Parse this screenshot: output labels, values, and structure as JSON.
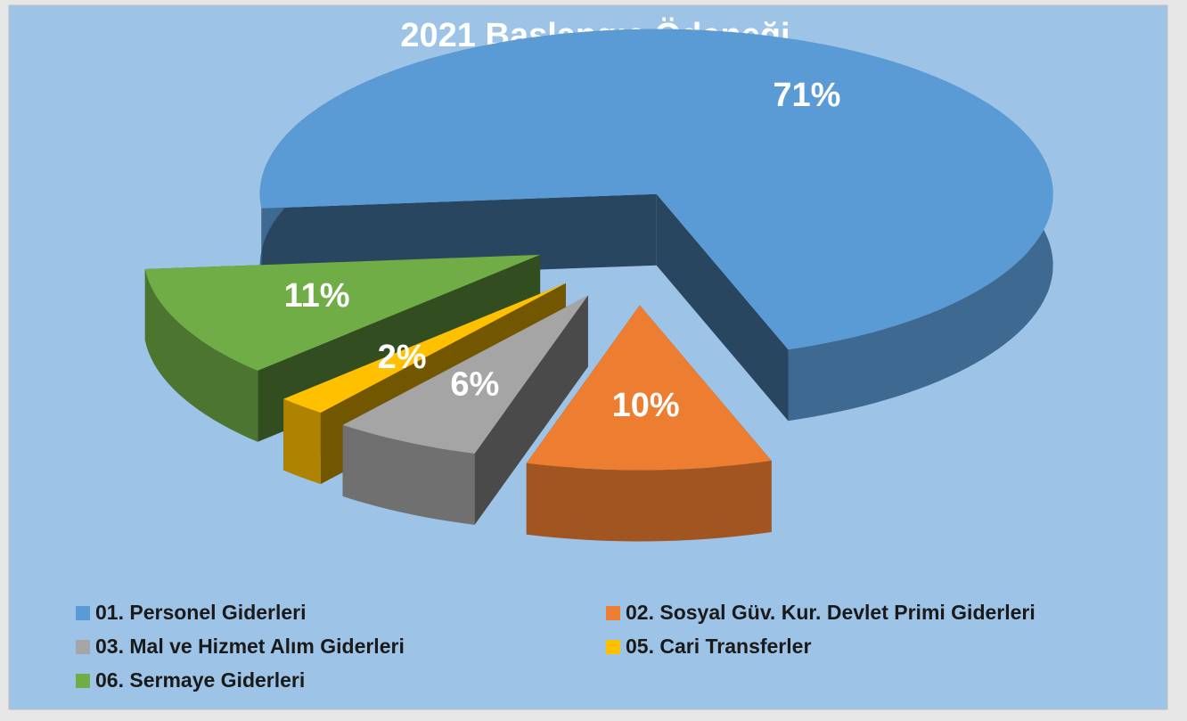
{
  "chart_data": {
    "type": "pie3d",
    "title": "2021 Başlangıç Ödeneği",
    "categories": [
      "01. Personel Giderleri",
      "02. Sosyal Güv. Kur. Devlet Primi Giderleri",
      "03. Mal ve Hizmet Alım Giderleri",
      "05. Cari Transferler",
      "06. Sermaye Giderleri"
    ],
    "values": [
      71,
      10,
      6,
      2,
      11
    ],
    "value_labels": [
      "71%",
      "10%",
      "6%",
      "2%",
      "11%"
    ],
    "colors": [
      "#5b9bd5",
      "#ed7d31",
      "#a5a5a5",
      "#ffc000",
      "#70ad47"
    ],
    "legend": "bottom"
  }
}
